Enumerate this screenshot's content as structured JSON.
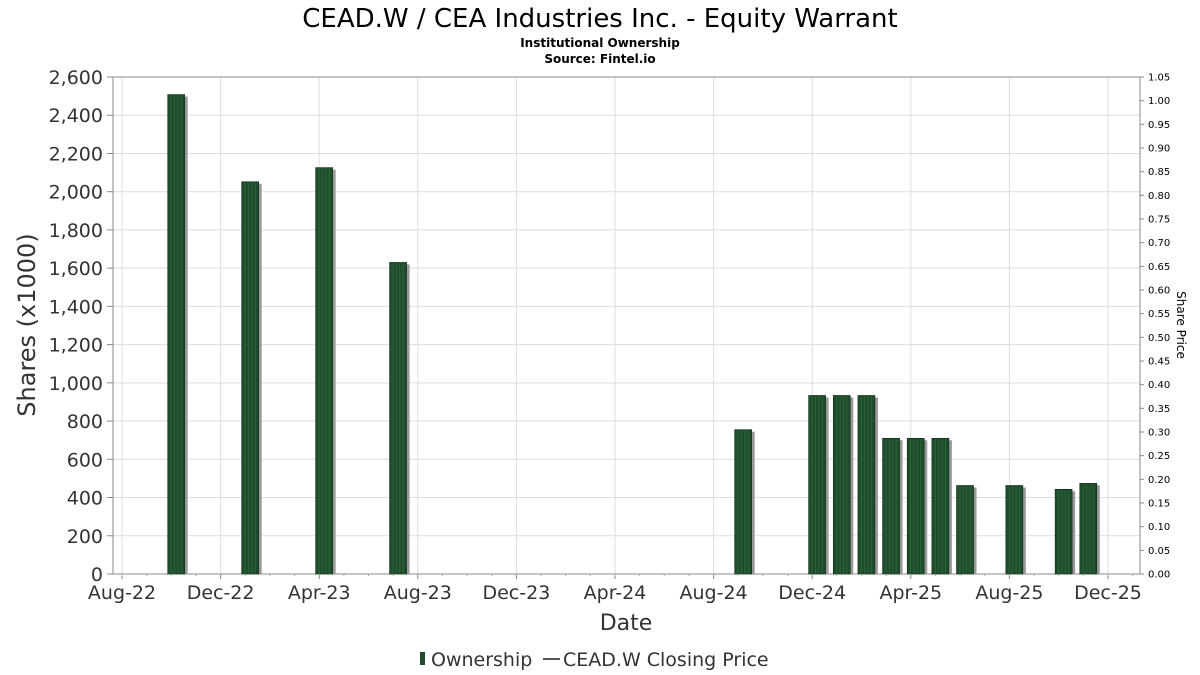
{
  "chart_data": {
    "type": "bar",
    "title": "CEAD.W / CEA Industries Inc. - Equity Warrant",
    "subtitle": "Institutional Ownership",
    "source": "Source: Fintel.io",
    "xlabel": "Date",
    "ylabel": "Shares (x1000)",
    "y2label": "Share Price",
    "ylim": [
      0,
      2600
    ],
    "y2lim": [
      0,
      1.05
    ],
    "yticks": [
      "0",
      "200",
      "400",
      "600",
      "800",
      "1,000",
      "1,200",
      "1,400",
      "1,600",
      "1,800",
      "2,000",
      "2,200",
      "2,400",
      "2,600"
    ],
    "y2ticks": [
      "0.00",
      "0.05",
      "0.10",
      "0.15",
      "0.20",
      "0.25",
      "0.30",
      "0.35",
      "0.40",
      "0.45",
      "0.50",
      "0.55",
      "0.60",
      "0.65",
      "0.70",
      "0.75",
      "0.80",
      "0.85",
      "0.90",
      "0.95",
      "1.00",
      "1.05"
    ],
    "xticks": [
      "Aug-22",
      "Dec-22",
      "Apr-23",
      "Aug-23",
      "Dec-23",
      "Apr-24",
      "Aug-24",
      "Dec-24",
      "Apr-25",
      "Aug-25",
      "Dec-25"
    ],
    "x_month_range": [
      0,
      41
    ],
    "grid": true,
    "series": [
      {
        "name": "Ownership",
        "color": "#1f4d2b",
        "points": [
          {
            "month": 2.0,
            "value": 2508
          },
          {
            "month": 5.0,
            "value": 2052
          },
          {
            "month": 8.0,
            "value": 2126
          },
          {
            "month": 11.0,
            "value": 1630
          },
          {
            "month": 25.0,
            "value": 755
          },
          {
            "month": 28.0,
            "value": 934
          },
          {
            "month": 29.0,
            "value": 934
          },
          {
            "month": 30.0,
            "value": 934
          },
          {
            "month": 31.0,
            "value": 710
          },
          {
            "month": 32.0,
            "value": 710
          },
          {
            "month": 33.0,
            "value": 710
          },
          {
            "month": 34.0,
            "value": 463
          },
          {
            "month": 36.0,
            "value": 463
          },
          {
            "month": 38.0,
            "value": 443
          },
          {
            "month": 39.0,
            "value": 474
          }
        ]
      },
      {
        "name": "CEAD.W Closing Price",
        "color": "#555555",
        "points": []
      }
    ],
    "legend": [
      "Ownership",
      "CEAD.W Closing Price"
    ],
    "legend_position": "bottom-center"
  }
}
